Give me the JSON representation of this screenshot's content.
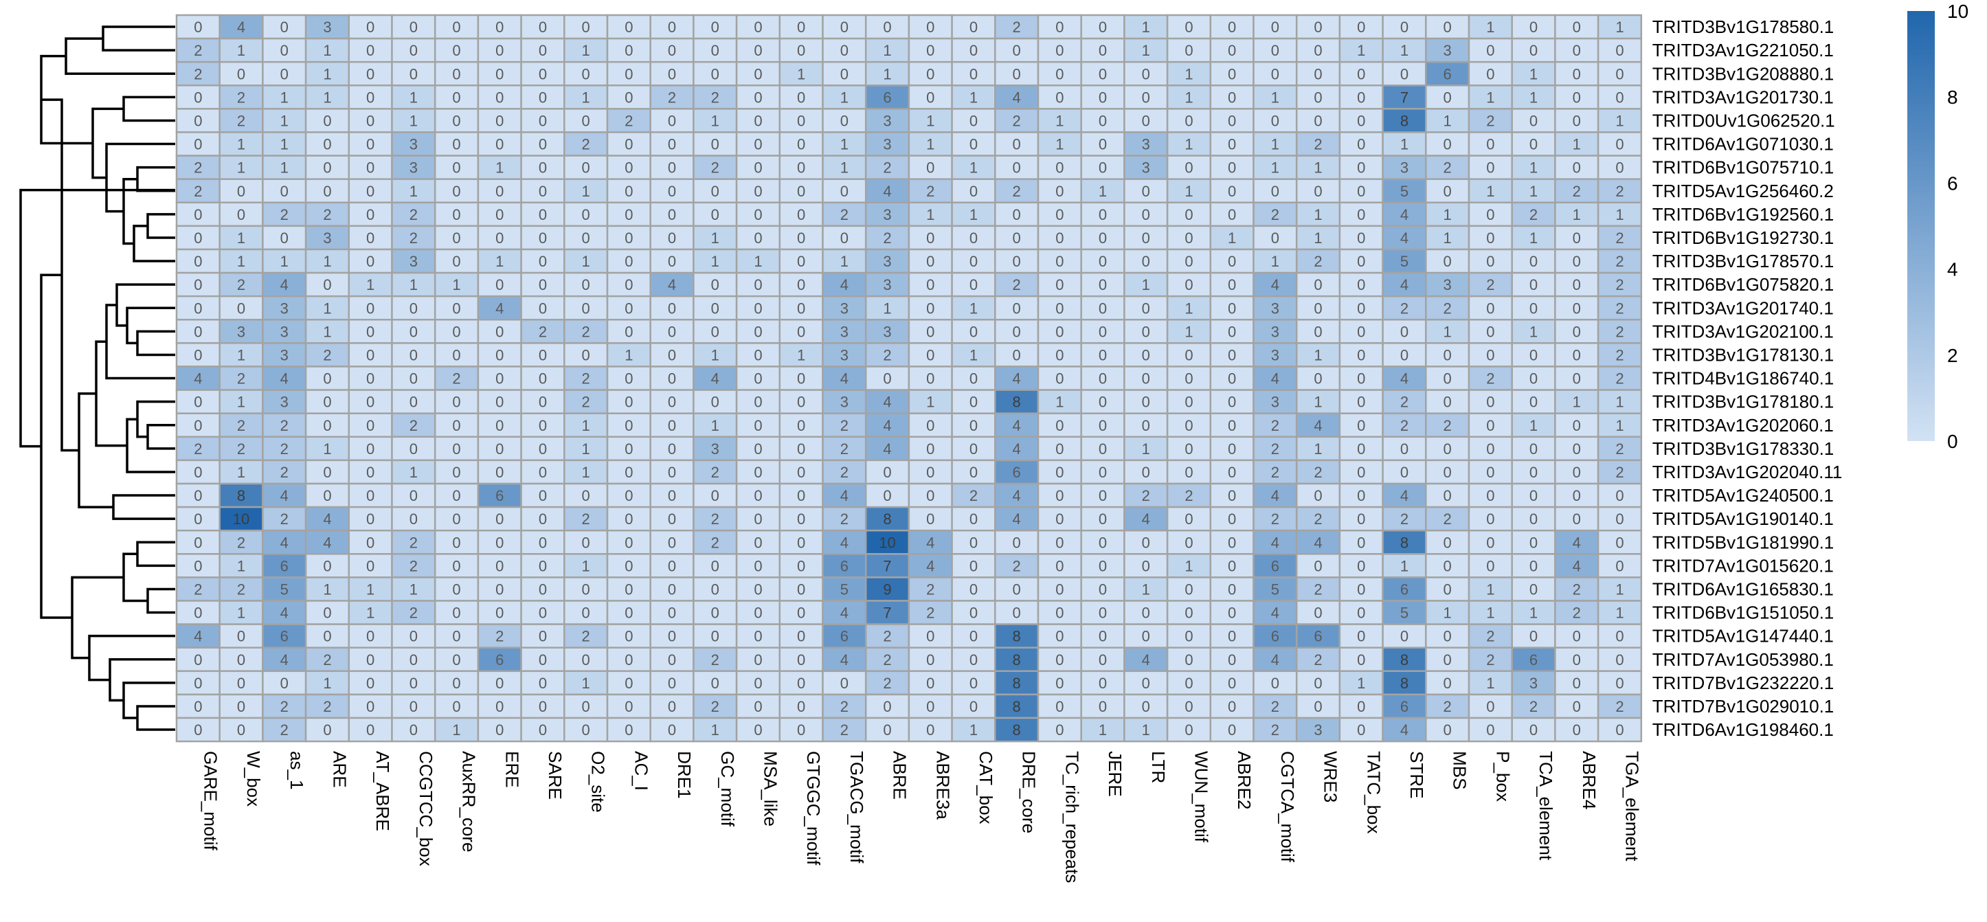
{
  "chart_data": {
    "type": "heatmap",
    "colorbar": {
      "min": 0,
      "max": 10,
      "ticks": [
        "10",
        "8",
        "6",
        "4",
        "2",
        "0"
      ],
      "color_low": "#d2e2f4",
      "color_high": "#2166ac"
    },
    "row_labels": [
      "TRITD3Bv1G178580.1",
      "TRITD3Av1G221050.1",
      "TRITD3Bv1G208880.1",
      "TRITD3Av1G201730.1",
      "TRITD0Uv1G062520.1",
      "TRITD6Av1G071030.1",
      "TRITD6Bv1G075710.1",
      "TRITD5Av1G256460.2",
      "TRITD6Bv1G192560.1",
      "TRITD6Bv1G192730.1",
      "TRITD3Bv1G178570.1",
      "TRITD6Bv1G075820.1",
      "TRITD3Av1G201740.1",
      "TRITD3Av1G202100.1",
      "TRITD3Bv1G178130.1",
      "TRITD4Bv1G186740.1",
      "TRITD3Bv1G178180.1",
      "TRITD3Av1G202060.1",
      "TRITD3Bv1G178330.1",
      "TRITD3Av1G202040.11",
      "TRITD5Av1G240500.1",
      "TRITD5Av1G190140.1",
      "TRITD5Bv1G181990.1",
      "TRITD7Av1G015620.1",
      "TRITD6Av1G165830.1",
      "TRITD6Bv1G151050.1",
      "TRITD5Av1G147440.1",
      "TRITD7Av1G053980.1",
      "TRITD7Bv1G232220.1",
      "TRITD7Bv1G029010.1",
      "TRITD6Av1G198460.1"
    ],
    "col_labels": [
      "GARE_motif",
      "W_box",
      "as_1",
      "ARE",
      "AT_ABRE",
      "CCGTCC_box",
      "AuxRR_core",
      "ERE",
      "SARE",
      "O2_site",
      "AC_I",
      "DRE1",
      "GC_motif",
      "MSA_like",
      "GTGGC_motif",
      "TGACG_motif",
      "ABRE",
      "ABRE3a",
      "CAT_box",
      "DRE_core",
      "TC_rich_repeats",
      "JERE",
      "LTR",
      "WUN_motif",
      "ABRE2",
      "CGTCA_motif",
      "WRE3",
      "TATC_box",
      "STRE",
      "MBS",
      "P_box",
      "TCA_element",
      "ABRE4",
      "TGA_element"
    ],
    "values": [
      [
        0,
        4,
        0,
        3,
        0,
        0,
        0,
        0,
        0,
        0,
        0,
        0,
        0,
        0,
        0,
        0,
        0,
        0,
        0,
        2,
        0,
        0,
        1,
        0,
        0,
        0,
        0,
        0,
        0,
        0,
        1,
        0,
        0,
        1
      ],
      [
        2,
        1,
        0,
        1,
        0,
        0,
        0,
        0,
        0,
        1,
        0,
        0,
        0,
        0,
        0,
        0,
        1,
        0,
        0,
        0,
        0,
        0,
        1,
        0,
        0,
        0,
        0,
        1,
        1,
        3,
        0,
        0,
        0,
        0
      ],
      [
        2,
        0,
        0,
        1,
        0,
        0,
        0,
        0,
        0,
        0,
        0,
        0,
        0,
        0,
        1,
        0,
        1,
        0,
        0,
        0,
        0,
        0,
        0,
        1,
        0,
        0,
        0,
        0,
        0,
        6,
        0,
        1,
        0,
        0
      ],
      [
        0,
        2,
        1,
        1,
        0,
        1,
        0,
        0,
        0,
        1,
        0,
        2,
        2,
        0,
        0,
        1,
        6,
        0,
        1,
        4,
        0,
        0,
        0,
        1,
        0,
        1,
        0,
        0,
        7,
        0,
        1,
        1,
        0,
        0
      ],
      [
        0,
        2,
        1,
        0,
        0,
        1,
        0,
        0,
        0,
        0,
        2,
        0,
        1,
        0,
        0,
        0,
        3,
        1,
        0,
        2,
        1,
        0,
        0,
        0,
        0,
        0,
        0,
        0,
        8,
        1,
        2,
        0,
        0,
        1
      ],
      [
        0,
        1,
        1,
        0,
        0,
        3,
        0,
        0,
        0,
        2,
        0,
        0,
        0,
        0,
        0,
        1,
        3,
        1,
        0,
        0,
        1,
        0,
        3,
        1,
        0,
        1,
        2,
        0,
        1,
        0,
        0,
        0,
        1,
        0
      ],
      [
        2,
        1,
        1,
        0,
        0,
        3,
        0,
        1,
        0,
        0,
        0,
        0,
        2,
        0,
        0,
        1,
        2,
        0,
        1,
        0,
        0,
        0,
        3,
        0,
        0,
        1,
        1,
        0,
        3,
        2,
        0,
        1,
        0,
        0
      ],
      [
        2,
        0,
        0,
        0,
        0,
        1,
        0,
        0,
        0,
        1,
        0,
        0,
        0,
        0,
        0,
        0,
        4,
        2,
        0,
        2,
        0,
        1,
        0,
        1,
        0,
        0,
        0,
        0,
        5,
        0,
        1,
        1,
        2,
        2
      ],
      [
        0,
        0,
        2,
        2,
        0,
        2,
        0,
        0,
        0,
        0,
        0,
        0,
        0,
        0,
        0,
        2,
        3,
        1,
        1,
        0,
        0,
        0,
        0,
        0,
        0,
        2,
        1,
        0,
        4,
        1,
        0,
        2,
        1,
        1
      ],
      [
        0,
        1,
        0,
        3,
        0,
        2,
        0,
        0,
        0,
        0,
        0,
        0,
        1,
        0,
        0,
        0,
        2,
        0,
        0,
        0,
        0,
        0,
        0,
        0,
        1,
        0,
        1,
        0,
        4,
        1,
        0,
        1,
        0,
        2
      ],
      [
        0,
        1,
        1,
        1,
        0,
        3,
        0,
        1,
        0,
        1,
        0,
        0,
        1,
        1,
        0,
        1,
        3,
        0,
        0,
        0,
        0,
        0,
        0,
        0,
        0,
        1,
        2,
        0,
        5,
        0,
        0,
        0,
        0,
        2
      ],
      [
        0,
        2,
        4,
        0,
        1,
        1,
        1,
        0,
        0,
        0,
        0,
        4,
        0,
        0,
        0,
        4,
        3,
        0,
        0,
        2,
        0,
        0,
        1,
        0,
        0,
        4,
        0,
        0,
        4,
        3,
        2,
        0,
        0,
        2
      ],
      [
        0,
        0,
        3,
        1,
        0,
        0,
        0,
        4,
        0,
        0,
        0,
        0,
        0,
        0,
        0,
        3,
        1,
        0,
        1,
        0,
        0,
        0,
        0,
        1,
        0,
        3,
        0,
        0,
        2,
        2,
        0,
        0,
        0,
        2
      ],
      [
        0,
        3,
        3,
        1,
        0,
        0,
        0,
        0,
        2,
        2,
        0,
        0,
        0,
        0,
        0,
        3,
        3,
        0,
        0,
        0,
        0,
        0,
        0,
        1,
        0,
        3,
        0,
        0,
        0,
        1,
        0,
        1,
        0,
        2
      ],
      [
        0,
        1,
        3,
        2,
        0,
        0,
        0,
        0,
        0,
        0,
        1,
        0,
        1,
        0,
        1,
        3,
        2,
        0,
        1,
        0,
        0,
        0,
        0,
        0,
        0,
        3,
        1,
        0,
        0,
        0,
        0,
        0,
        0,
        2
      ],
      [
        4,
        2,
        4,
        0,
        0,
        0,
        2,
        0,
        0,
        2,
        0,
        0,
        4,
        0,
        0,
        4,
        0,
        0,
        0,
        4,
        0,
        0,
        0,
        0,
        0,
        4,
        0,
        0,
        4,
        0,
        2,
        0,
        0,
        2
      ],
      [
        0,
        1,
        3,
        0,
        0,
        0,
        0,
        0,
        0,
        2,
        0,
        0,
        0,
        0,
        0,
        3,
        4,
        1,
        0,
        8,
        1,
        0,
        0,
        0,
        0,
        3,
        1,
        0,
        2,
        0,
        0,
        0,
        1,
        1
      ],
      [
        0,
        2,
        2,
        0,
        0,
        2,
        0,
        0,
        0,
        1,
        0,
        0,
        1,
        0,
        0,
        2,
        4,
        0,
        0,
        4,
        0,
        0,
        0,
        0,
        0,
        2,
        4,
        0,
        2,
        2,
        0,
        1,
        0,
        1
      ],
      [
        2,
        2,
        2,
        1,
        0,
        0,
        0,
        0,
        0,
        1,
        0,
        0,
        3,
        0,
        0,
        2,
        4,
        0,
        0,
        4,
        0,
        0,
        1,
        0,
        0,
        2,
        1,
        0,
        0,
        0,
        0,
        0,
        0,
        2
      ],
      [
        0,
        1,
        2,
        0,
        0,
        1,
        0,
        0,
        0,
        1,
        0,
        0,
        2,
        0,
        0,
        2,
        0,
        0,
        0,
        6,
        0,
        0,
        0,
        0,
        0,
        2,
        2,
        0,
        0,
        0,
        0,
        0,
        0,
        2
      ],
      [
        0,
        8,
        4,
        0,
        0,
        0,
        0,
        6,
        0,
        0,
        0,
        0,
        0,
        0,
        0,
        4,
        0,
        0,
        2,
        4,
        0,
        0,
        2,
        2,
        0,
        4,
        0,
        0,
        4,
        0,
        0,
        0,
        0,
        0
      ],
      [
        0,
        10,
        2,
        4,
        0,
        0,
        0,
        0,
        0,
        2,
        0,
        0,
        2,
        0,
        0,
        2,
        8,
        0,
        0,
        4,
        0,
        0,
        4,
        0,
        0,
        2,
        2,
        0,
        2,
        2,
        0,
        0,
        0,
        0
      ],
      [
        0,
        2,
        4,
        4,
        0,
        2,
        0,
        0,
        0,
        0,
        0,
        0,
        2,
        0,
        0,
        4,
        10,
        4,
        0,
        0,
        0,
        0,
        0,
        0,
        0,
        4,
        4,
        0,
        8,
        0,
        0,
        0,
        4,
        0
      ],
      [
        0,
        1,
        6,
        0,
        0,
        2,
        0,
        0,
        0,
        1,
        0,
        0,
        0,
        0,
        0,
        6,
        7,
        4,
        0,
        2,
        0,
        0,
        0,
        1,
        0,
        6,
        0,
        0,
        1,
        0,
        0,
        0,
        4,
        0
      ],
      [
        2,
        2,
        5,
        1,
        1,
        1,
        0,
        0,
        0,
        0,
        0,
        0,
        0,
        0,
        0,
        5,
        9,
        2,
        0,
        0,
        0,
        0,
        1,
        0,
        0,
        5,
        2,
        0,
        6,
        0,
        1,
        0,
        2,
        1
      ],
      [
        0,
        1,
        4,
        0,
        1,
        2,
        0,
        0,
        0,
        0,
        0,
        0,
        0,
        0,
        0,
        4,
        7,
        2,
        0,
        0,
        0,
        0,
        0,
        0,
        0,
        4,
        0,
        0,
        5,
        1,
        1,
        1,
        2,
        1
      ],
      [
        4,
        0,
        6,
        0,
        0,
        0,
        0,
        2,
        0,
        2,
        0,
        0,
        0,
        0,
        0,
        6,
        2,
        0,
        0,
        8,
        0,
        0,
        0,
        0,
        0,
        6,
        6,
        0,
        0,
        0,
        2,
        0,
        0,
        0
      ],
      [
        0,
        0,
        4,
        2,
        0,
        0,
        0,
        6,
        0,
        0,
        0,
        0,
        2,
        0,
        0,
        4,
        2,
        0,
        0,
        8,
        0,
        0,
        4,
        0,
        0,
        4,
        2,
        0,
        8,
        0,
        2,
        6,
        0,
        0
      ],
      [
        0,
        0,
        0,
        1,
        0,
        0,
        0,
        0,
        0,
        1,
        0,
        0,
        0,
        0,
        0,
        0,
        2,
        0,
        0,
        8,
        0,
        0,
        0,
        0,
        0,
        0,
        0,
        1,
        8,
        0,
        1,
        3,
        0,
        0
      ],
      [
        0,
        0,
        2,
        2,
        0,
        0,
        0,
        0,
        0,
        0,
        0,
        0,
        2,
        0,
        0,
        2,
        0,
        0,
        0,
        8,
        0,
        0,
        0,
        0,
        0,
        2,
        0,
        0,
        6,
        2,
        0,
        2,
        0,
        2
      ],
      [
        0,
        0,
        2,
        0,
        0,
        0,
        1,
        0,
        0,
        0,
        0,
        0,
        1,
        0,
        0,
        2,
        0,
        0,
        1,
        8,
        0,
        1,
        1,
        0,
        0,
        2,
        3,
        0,
        4,
        0,
        0,
        0,
        0,
        0
      ]
    ],
    "dendrogram": "row clustering tree on the left"
  }
}
